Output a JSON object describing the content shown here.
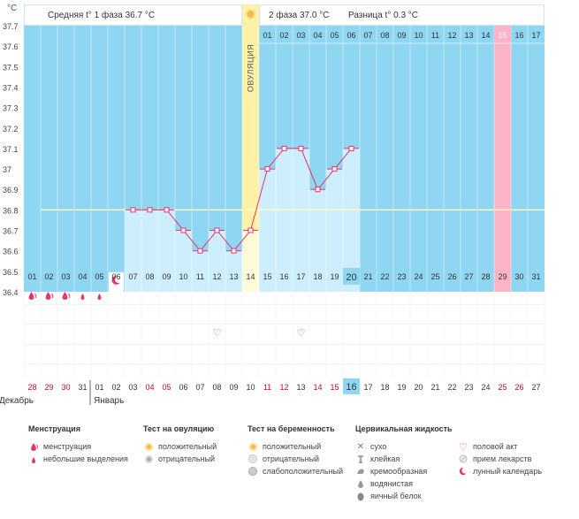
{
  "chart_data": {
    "type": "line",
    "y_unit": "°C",
    "y_ticks": [
      "37.7",
      "37.6",
      "37.5",
      "37.4",
      "37.3",
      "37.2",
      "37.1",
      "37",
      "36.9",
      "36.8",
      "36.7",
      "36.6",
      "36.5",
      "36.4"
    ],
    "ylim": [
      36.4,
      37.7
    ],
    "cover_line": 36.8,
    "days": [
      "01",
      "02",
      "03",
      "04",
      "05",
      "06",
      "07",
      "08",
      "09",
      "10",
      "11",
      "12",
      "13",
      "14",
      "15",
      "16",
      "17",
      "18",
      "19",
      "20",
      "21",
      "22",
      "23",
      "24",
      "25",
      "26",
      "27",
      "28",
      "29",
      "30",
      "31"
    ],
    "temperatures": [
      null,
      null,
      null,
      null,
      null,
      null,
      36.8,
      36.8,
      36.8,
      36.7,
      36.6,
      36.7,
      36.6,
      36.7,
      37.0,
      37.1,
      37.1,
      36.9,
      37.0,
      37.1,
      null,
      null,
      null,
      null,
      null,
      null,
      null,
      null,
      null,
      null,
      null
    ],
    "ovulation_day_index": 13,
    "ovulation_label": "ОВУЛЯЦИЯ",
    "highlight_day_index": 28,
    "today_day_index": 19,
    "phase2_day_labels": [
      "01",
      "02",
      "03",
      "04",
      "05",
      "06",
      "07",
      "08",
      "09",
      "10",
      "11",
      "12",
      "13",
      "14",
      "15",
      "16",
      "17"
    ],
    "phase2_highlight_index": 14,
    "summary": {
      "phase1": "Средняя t° 1 фаза 36.7 °C",
      "phase2": "2 фаза 37.0 °C",
      "diff": "Разница t° 0.3 °C"
    },
    "calendar_dates": [
      "28",
      "29",
      "30",
      "31",
      "01",
      "02",
      "03",
      "04",
      "05",
      "06",
      "07",
      "08",
      "09",
      "10",
      "11",
      "12",
      "13",
      "14",
      "15",
      "16",
      "17",
      "18",
      "19",
      "20",
      "21",
      "22",
      "23",
      "24",
      "25",
      "26",
      "27"
    ],
    "calendar_red_indices": [
      0,
      1,
      2,
      7,
      8,
      14,
      15,
      17,
      18,
      28,
      29
    ],
    "calendar_today_index": 19,
    "months": [
      "Декабрь",
      "Январь"
    ],
    "moon_day_index": 5,
    "menstruation_heavy_indices": [
      0,
      1,
      2
    ],
    "menstruation_light_indices": [
      3,
      4
    ],
    "intercourse_indices": [
      11,
      16
    ]
  },
  "legend": {
    "menstruation": {
      "title": "Менструация",
      "items": [
        "менструация",
        "небольшие выделения"
      ]
    },
    "ovulation_test": {
      "title": "Тест на овуляцию",
      "items": [
        "положительный",
        "отрицательный"
      ]
    },
    "pregnancy_test": {
      "title": "Тест на беременность",
      "items": [
        "положительный",
        "отрицательный",
        "слабоположительный"
      ]
    },
    "cervical": {
      "title": "Цервикальная жидкость",
      "items": [
        "сухо",
        "клейкая",
        "кремообразная",
        "водянистая",
        "яичный белок"
      ]
    },
    "other": {
      "items": [
        "половой акт",
        "прием лекарств",
        "лунный календарь"
      ]
    }
  },
  "colors": {
    "plot_bg": "#8fd6f2",
    "bar_fill": "#cdeffd",
    "line": "#e8336e",
    "ovulation": "#fff1a6",
    "highlight": "#ffb3c6",
    "today": "#8fd6f2",
    "red_text": "#cc0033",
    "cover": "#fff8c8"
  }
}
